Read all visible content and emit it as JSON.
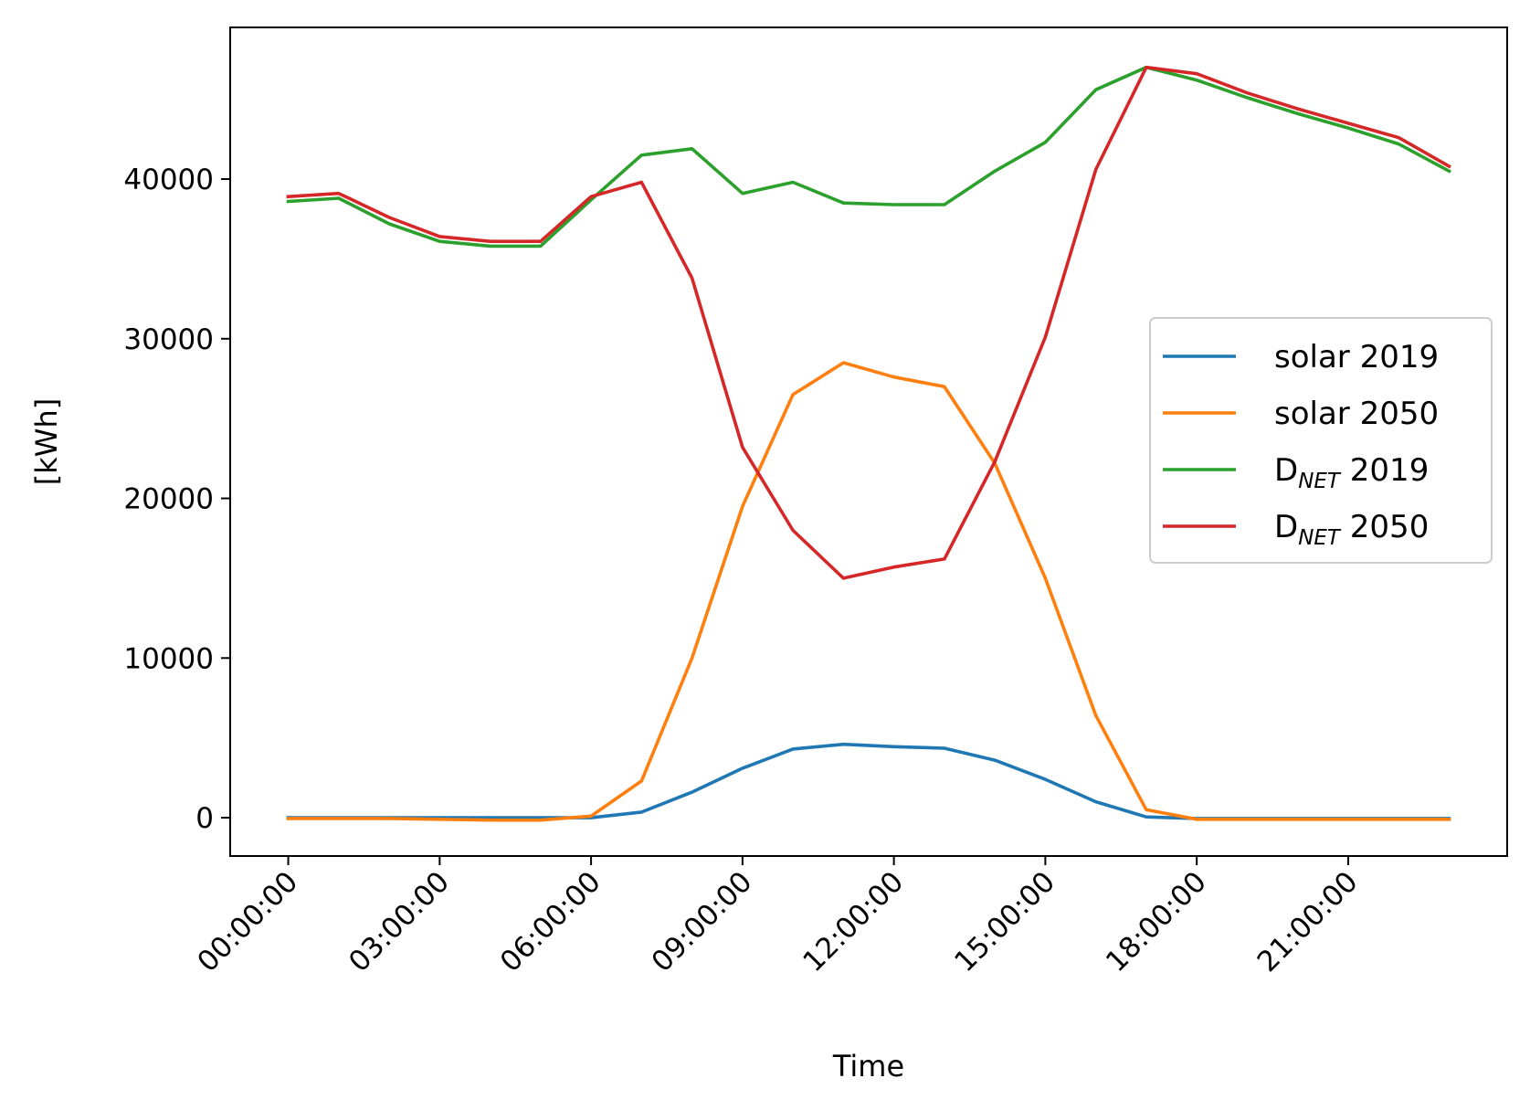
{
  "chart_data": {
    "type": "line",
    "title": "",
    "xlabel": "Time",
    "ylabel": "[kWh]",
    "x": [
      "00:00:00",
      "01:00:00",
      "02:00:00",
      "03:00:00",
      "04:00:00",
      "05:00:00",
      "06:00:00",
      "07:00:00",
      "08:00:00",
      "09:00:00",
      "10:00:00",
      "11:00:00",
      "12:00:00",
      "13:00:00",
      "14:00:00",
      "15:00:00",
      "16:00:00",
      "17:00:00",
      "18:00:00",
      "19:00:00",
      "20:00:00",
      "21:00:00",
      "22:00:00",
      "23:00:00"
    ],
    "xticks": [
      "00:00:00",
      "03:00:00",
      "06:00:00",
      "09:00:00",
      "12:00:00",
      "15:00:00",
      "18:00:00",
      "21:00:00"
    ],
    "xlim": [
      -1.15,
      24.15
    ],
    "yticks": [
      0,
      10000,
      20000,
      30000,
      40000
    ],
    "ylim": [
      -2400,
      49500
    ],
    "grid": false,
    "legend": "center-right",
    "series": [
      {
        "name": "solar 2019",
        "label_main": "solar 2019",
        "label_sub": "",
        "label_rest": "",
        "color": "#1f77b4",
        "values": [
          0,
          0,
          0,
          0,
          0,
          0,
          0,
          350,
          1600,
          3100,
          4300,
          4600,
          4450,
          4350,
          3600,
          2400,
          1000,
          50,
          -50,
          -50,
          -50,
          -50,
          -50,
          -50
        ]
      },
      {
        "name": "solar 2050",
        "label_main": "solar 2050",
        "label_sub": "",
        "label_rest": "",
        "color": "#ff7f0e",
        "values": [
          -50,
          -50,
          -50,
          -100,
          -150,
          -150,
          100,
          2300,
          10000,
          19500,
          26500,
          28500,
          27600,
          27000,
          22200,
          15000,
          6400,
          500,
          -100,
          -100,
          -100,
          -100,
          -100,
          -100
        ]
      },
      {
        "name": "DNET 2019",
        "label_main": "D",
        "label_sub": "NET",
        "label_rest": " 2019",
        "color": "#2ca02c",
        "values": [
          38600,
          38800,
          37200,
          36100,
          35800,
          35800,
          38700,
          41500,
          41900,
          39100,
          39800,
          38500,
          38400,
          38400,
          40500,
          42300,
          45600,
          47000,
          46200,
          45100,
          44100,
          43200,
          42200,
          40500
        ]
      },
      {
        "name": "DNET 2050",
        "label_main": "D",
        "label_sub": "NET",
        "label_rest": " 2050",
        "color": "#d62728",
        "values": [
          38900,
          39100,
          37600,
          36400,
          36100,
          36100,
          38900,
          39800,
          33800,
          23200,
          18000,
          15000,
          15700,
          16200,
          22300,
          30100,
          40600,
          47000,
          46600,
          45400,
          44400,
          43500,
          42600,
          40800
        ]
      }
    ]
  }
}
